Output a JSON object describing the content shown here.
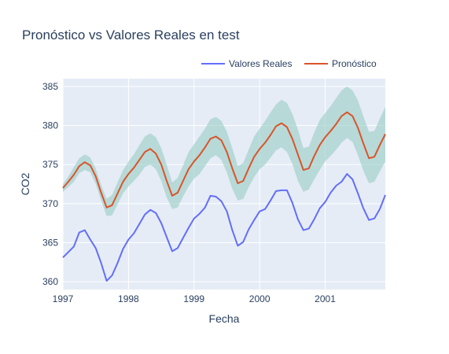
{
  "chart_data": {
    "type": "line",
    "title": "Pronóstico vs Valores Reales en test",
    "xlabel": "Fecha",
    "ylabel": "CO2",
    "x_range": [
      1997.0,
      2001.917
    ],
    "ylim": [
      359,
      386
    ],
    "x_ticks": [
      {
        "value": 1997,
        "label": "1997"
      },
      {
        "value": 1998,
        "label": "1998"
      },
      {
        "value": 1999,
        "label": "1999"
      },
      {
        "value": 2000,
        "label": "2000"
      },
      {
        "value": 2001,
        "label": "2001"
      }
    ],
    "y_ticks": [
      {
        "value": 360,
        "label": "360"
      },
      {
        "value": 365,
        "label": "365"
      },
      {
        "value": 370,
        "label": "370"
      },
      {
        "value": 375,
        "label": "375"
      },
      {
        "value": 380,
        "label": "380"
      },
      {
        "value": 385,
        "label": "385"
      }
    ],
    "grid": true,
    "legend_position": "top-right",
    "x": [
      1997.0,
      1997.083,
      1997.167,
      1997.25,
      1997.333,
      1997.417,
      1997.5,
      1997.583,
      1997.667,
      1997.75,
      1997.833,
      1997.917,
      1998.0,
      1998.083,
      1998.167,
      1998.25,
      1998.333,
      1998.417,
      1998.5,
      1998.583,
      1998.667,
      1998.75,
      1998.833,
      1998.917,
      1999.0,
      1999.083,
      1999.167,
      1999.25,
      1999.333,
      1999.417,
      1999.5,
      1999.583,
      1999.667,
      1999.75,
      1999.833,
      1999.917,
      2000.0,
      2000.083,
      2000.167,
      2000.25,
      2000.333,
      2000.417,
      2000.5,
      2000.583,
      2000.667,
      2000.75,
      2000.833,
      2000.917,
      2001.0,
      2001.083,
      2001.167,
      2001.25,
      2001.333,
      2001.417,
      2001.5,
      2001.583,
      2001.667,
      2001.75,
      2001.833,
      2001.917
    ],
    "series": [
      {
        "name": "Valores Reales",
        "color": "#636efa",
        "values": [
          363.1,
          363.8,
          364.5,
          366.3,
          366.6,
          365.4,
          364.3,
          362.4,
          360.1,
          360.8,
          362.4,
          364.2,
          365.4,
          366.2,
          367.4,
          368.6,
          369.2,
          368.8,
          367.5,
          365.7,
          363.9,
          364.3,
          365.6,
          366.9,
          368.1,
          368.7,
          369.5,
          371.0,
          370.9,
          370.3,
          369.0,
          366.6,
          364.6,
          365.1,
          366.7,
          367.9,
          369.0,
          369.3,
          370.4,
          371.6,
          371.7,
          371.7,
          370.1,
          368.0,
          366.6,
          366.8,
          368.0,
          369.4,
          370.2,
          371.4,
          372.3,
          372.8,
          373.8,
          373.1,
          371.3,
          369.4,
          367.9,
          368.1,
          369.3,
          371.1
        ]
      },
      {
        "name": "Pronóstico",
        "color": "#d9542a",
        "values": [
          372.0,
          372.8,
          373.7,
          374.8,
          375.3,
          374.9,
          373.5,
          371.4,
          369.5,
          369.8,
          371.3,
          372.8,
          373.8,
          374.6,
          375.6,
          376.6,
          377.0,
          376.4,
          375.0,
          372.9,
          371.0,
          371.4,
          372.9,
          374.4,
          375.4,
          376.2,
          377.2,
          378.3,
          378.6,
          378.1,
          376.6,
          374.5,
          372.6,
          372.9,
          374.5,
          376.0,
          377.0,
          377.8,
          378.8,
          379.9,
          380.3,
          379.8,
          378.3,
          376.3,
          374.3,
          374.5,
          376.1,
          377.5,
          378.5,
          379.3,
          380.2,
          381.2,
          381.7,
          381.2,
          379.7,
          377.7,
          375.8,
          376.0,
          377.5,
          378.9
        ]
      }
    ],
    "confidence_band": {
      "color": "#9ecfc7",
      "lower": [
        371.5,
        372.1,
        372.8,
        373.9,
        374.3,
        374.0,
        372.5,
        370.4,
        368.4,
        368.5,
        369.9,
        371.3,
        372.2,
        372.9,
        373.7,
        374.7,
        375.0,
        374.4,
        372.9,
        370.8,
        369.3,
        369.5,
        370.9,
        372.2,
        373.2,
        373.8,
        374.8,
        375.8,
        376.2,
        375.6,
        374.0,
        371.9,
        370.4,
        370.6,
        372.1,
        373.4,
        374.4,
        375.0,
        375.9,
        376.8,
        377.2,
        376.6,
        375.1,
        372.9,
        371.5,
        371.8,
        373.1,
        374.3,
        375.4,
        376.1,
        376.9,
        377.8,
        378.4,
        377.9,
        376.2,
        374.2,
        372.6,
        372.8,
        374.1,
        375.4
      ],
      "upper": [
        372.5,
        373.5,
        374.7,
        375.8,
        376.3,
        375.9,
        374.5,
        372.4,
        370.6,
        371.1,
        372.7,
        374.3,
        375.4,
        376.3,
        377.5,
        378.6,
        379.0,
        378.5,
        377.1,
        375.0,
        372.7,
        373.3,
        374.9,
        376.6,
        377.6,
        378.6,
        379.6,
        380.8,
        381.1,
        380.6,
        379.2,
        377.1,
        374.8,
        375.2,
        376.9,
        378.6,
        379.6,
        380.6,
        381.7,
        382.7,
        383.3,
        382.9,
        381.5,
        379.5,
        377.1,
        377.3,
        379.1,
        380.7,
        381.6,
        382.5,
        383.5,
        384.5,
        385.0,
        384.5,
        383.2,
        381.2,
        379.2,
        379.3,
        380.9,
        382.4
      ]
    }
  }
}
